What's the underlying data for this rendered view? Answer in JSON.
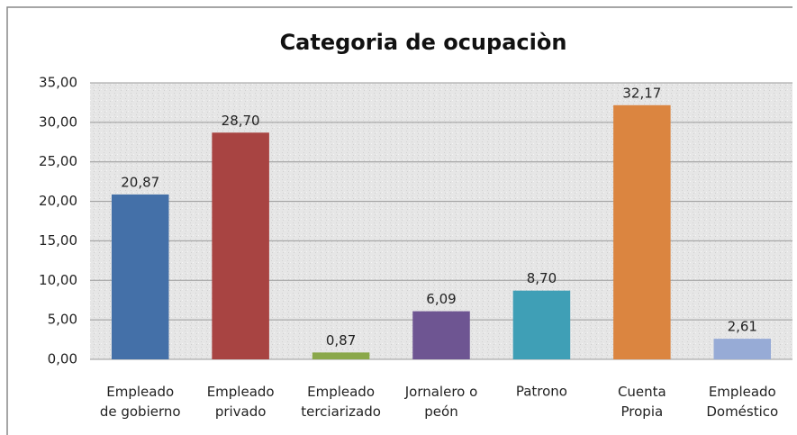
{
  "chart_data": {
    "type": "bar",
    "title": "Categoria de ocupaciòn",
    "categories": [
      "Empleado\nde gobierno",
      "Empleado\nprivado",
      "Empleado\nterciarizado",
      "Jornalero o\npeón",
      "Patrono",
      "Cuenta\nPropia",
      "Empleado\nDoméstico"
    ],
    "values": [
      20.87,
      28.7,
      0.87,
      6.09,
      8.7,
      32.17,
      2.61
    ],
    "value_labels": [
      "20,87",
      "28,70",
      "0,87",
      "6,09",
      "8,70",
      "32,17",
      "2,61"
    ],
    "colors": [
      "#4470a8",
      "#a84442",
      "#8aa84a",
      "#6e5592",
      "#3f9fb6",
      "#db8540",
      "#97abd6"
    ],
    "ylim": [
      0,
      35
    ],
    "yticks": [
      {
        "value": 0,
        "label": "0,00"
      },
      {
        "value": 5,
        "label": "5,00"
      },
      {
        "value": 10,
        "label": "10,00"
      },
      {
        "value": 15,
        "label": "15,00"
      },
      {
        "value": 20,
        "label": "20,00"
      },
      {
        "value": 25,
        "label": "25,00"
      },
      {
        "value": 30,
        "label": "30,00"
      },
      {
        "value": 35,
        "label": "35,00"
      }
    ],
    "grid": true
  }
}
